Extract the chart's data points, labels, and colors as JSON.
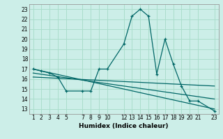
{
  "title": "",
  "xlabel": "Humidex (Indice chaleur)",
  "bg_color": "#cceee8",
  "grid_color": "#aaddcc",
  "line_color": "#006666",
  "xlim": [
    0.5,
    23.5
  ],
  "ylim": [
    12.5,
    23.5
  ],
  "xticks": [
    1,
    2,
    3,
    4,
    5,
    7,
    8,
    9,
    10,
    12,
    13,
    14,
    15,
    16,
    17,
    18,
    19,
    20,
    21,
    23
  ],
  "yticks": [
    13,
    14,
    15,
    16,
    17,
    18,
    19,
    20,
    21,
    22,
    23
  ],
  "line1_x": [
    1,
    2,
    3,
    4,
    5,
    7,
    8,
    9,
    10,
    12,
    13,
    14,
    15,
    16,
    17,
    18,
    19,
    20,
    21,
    23
  ],
  "line1_y": [
    17.0,
    16.8,
    16.6,
    16.2,
    14.8,
    14.8,
    14.8,
    17.0,
    17.0,
    19.5,
    22.3,
    23.0,
    22.3,
    16.5,
    20.0,
    17.5,
    15.3,
    13.8,
    13.8,
    12.8
  ],
  "line2_x": [
    1,
    23
  ],
  "line2_y": [
    17.0,
    13.0
  ],
  "line3_x": [
    1,
    23
  ],
  "line3_y": [
    16.6,
    14.0
  ],
  "line4_x": [
    1,
    23
  ],
  "line4_y": [
    16.2,
    15.3
  ]
}
